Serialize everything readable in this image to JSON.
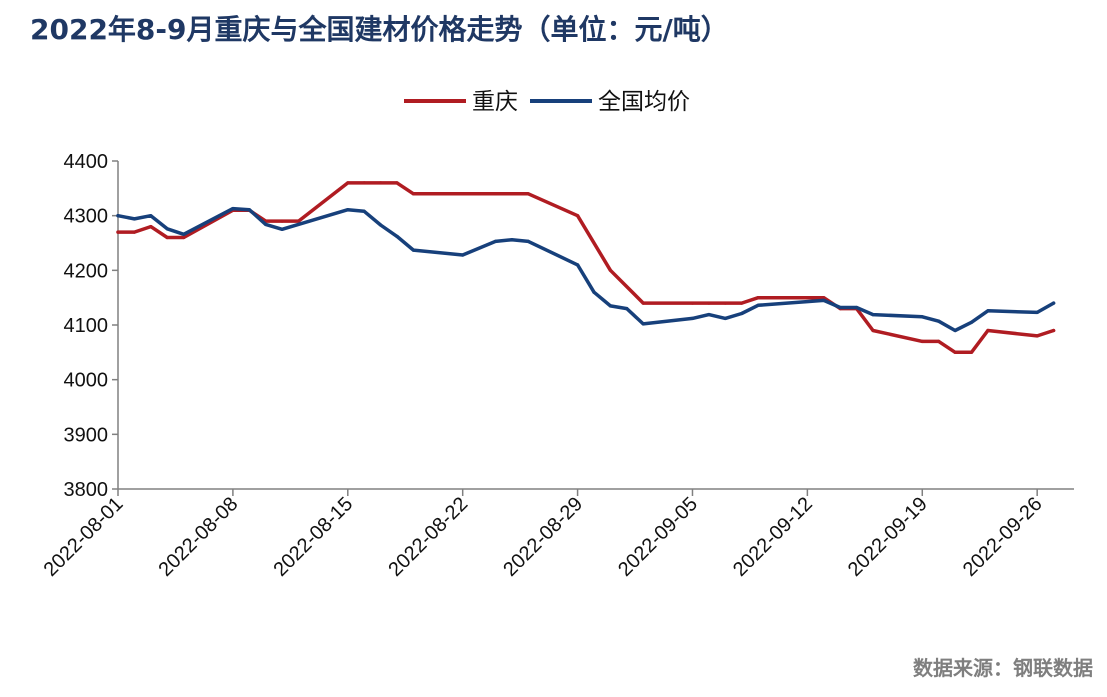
{
  "title": "2022年8-9月重庆与全国建材价格走势（单位：元/吨）",
  "source": "数据来源：钢联数据",
  "colors": {
    "chongqing": "#b01c22",
    "national": "#17407b"
  },
  "chart_data": {
    "type": "line",
    "title": "2022年8-9月重庆与全国建材价格走势（单位：元/吨）",
    "xlabel": "",
    "ylabel": "",
    "ylim": [
      3800,
      4400
    ],
    "yticks": [
      3800,
      3900,
      4000,
      4100,
      4200,
      4300,
      4400
    ],
    "x_range": [
      "2022-08-01",
      "2022-09-28"
    ],
    "xticks": [
      "2022-08-01",
      "2022-08-08",
      "2022-08-15",
      "2022-08-22",
      "2022-08-29",
      "2022-09-05",
      "2022-09-12",
      "2022-09-19",
      "2022-09-26"
    ],
    "grid": false,
    "legend_position": "top-center",
    "series": [
      {
        "name": "重庆",
        "color": "#b01c22",
        "points": [
          [
            "2022-08-01",
            4270
          ],
          [
            "2022-08-02",
            4270
          ],
          [
            "2022-08-03",
            4280
          ],
          [
            "2022-08-04",
            4260
          ],
          [
            "2022-08-05",
            4260
          ],
          [
            "2022-08-08",
            4310
          ],
          [
            "2022-08-09",
            4310
          ],
          [
            "2022-08-10",
            4290
          ],
          [
            "2022-08-11",
            4290
          ],
          [
            "2022-08-12",
            4290
          ],
          [
            "2022-08-15",
            4360
          ],
          [
            "2022-08-16",
            4360
          ],
          [
            "2022-08-17",
            4360
          ],
          [
            "2022-08-18",
            4360
          ],
          [
            "2022-08-19",
            4340
          ],
          [
            "2022-08-22",
            4340
          ],
          [
            "2022-08-23",
            4340
          ],
          [
            "2022-08-24",
            4340
          ],
          [
            "2022-08-25",
            4340
          ],
          [
            "2022-08-26",
            4340
          ],
          [
            "2022-08-29",
            4300
          ],
          [
            "2022-08-31",
            4200
          ],
          [
            "2022-09-02",
            4140
          ],
          [
            "2022-09-05",
            4140
          ],
          [
            "2022-09-06",
            4140
          ],
          [
            "2022-09-07",
            4140
          ],
          [
            "2022-09-08",
            4140
          ],
          [
            "2022-09-09",
            4150
          ],
          [
            "2022-09-13",
            4150
          ],
          [
            "2022-09-14",
            4130
          ],
          [
            "2022-09-15",
            4130
          ],
          [
            "2022-09-16",
            4090
          ],
          [
            "2022-09-19",
            4070
          ],
          [
            "2022-09-20",
            4070
          ],
          [
            "2022-09-21",
            4050
          ],
          [
            "2022-09-22",
            4050
          ],
          [
            "2022-09-23",
            4090
          ],
          [
            "2022-09-26",
            4080
          ],
          [
            "2022-09-27",
            4090
          ]
        ]
      },
      {
        "name": "全国均价",
        "color": "#17407b",
        "points": [
          [
            "2022-08-01",
            4300
          ],
          [
            "2022-08-02",
            4294
          ],
          [
            "2022-08-03",
            4300
          ],
          [
            "2022-08-04",
            4276
          ],
          [
            "2022-08-05",
            4266
          ],
          [
            "2022-08-08",
            4313
          ],
          [
            "2022-08-09",
            4311
          ],
          [
            "2022-08-10",
            4284
          ],
          [
            "2022-08-11",
            4275
          ],
          [
            "2022-08-15",
            4311
          ],
          [
            "2022-08-16",
            4308
          ],
          [
            "2022-08-17",
            4283
          ],
          [
            "2022-08-18",
            4262
          ],
          [
            "2022-08-19",
            4237
          ],
          [
            "2022-08-22",
            4228
          ],
          [
            "2022-08-24",
            4253
          ],
          [
            "2022-08-25",
            4256
          ],
          [
            "2022-08-26",
            4253
          ],
          [
            "2022-08-29",
            4210
          ],
          [
            "2022-08-30",
            4160
          ],
          [
            "2022-08-31",
            4135
          ],
          [
            "2022-09-01",
            4130
          ],
          [
            "2022-09-02",
            4102
          ],
          [
            "2022-09-05",
            4112
          ],
          [
            "2022-09-06",
            4119
          ],
          [
            "2022-09-07",
            4112
          ],
          [
            "2022-09-08",
            4121
          ],
          [
            "2022-09-09",
            4136
          ],
          [
            "2022-09-13",
            4145
          ],
          [
            "2022-09-14",
            4132
          ],
          [
            "2022-09-15",
            4132
          ],
          [
            "2022-09-16",
            4119
          ],
          [
            "2022-09-19",
            4115
          ],
          [
            "2022-09-20",
            4107
          ],
          [
            "2022-09-21",
            4090
          ],
          [
            "2022-09-22",
            4105
          ],
          [
            "2022-09-23",
            4126
          ],
          [
            "2022-09-26",
            4123
          ],
          [
            "2022-09-27",
            4140
          ]
        ]
      }
    ]
  }
}
